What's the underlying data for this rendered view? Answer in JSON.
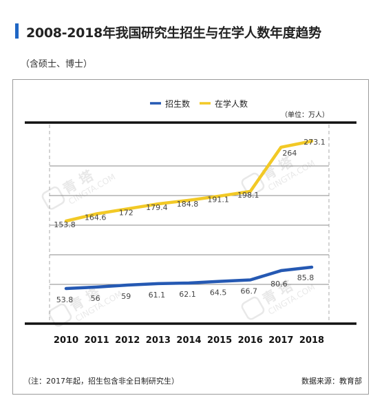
{
  "header": {
    "title": "2008-2018年我国研究生招生与在学人数年度趋势",
    "subtitle": "（含硕士、博士）"
  },
  "footer": {
    "note": "（注：2017年起，招生包含非全日制研究生）",
    "source": "数据来源：教育部"
  },
  "watermark": {
    "brand": "青 塔",
    "brand_en": "CINGTA.COM"
  },
  "colors": {
    "enrollment": "#2559b3",
    "in_school": "#f2c926",
    "rule": "#111111",
    "grid": "#888888"
  },
  "chart_data": {
    "type": "line",
    "unit_label": "（单位：万人）",
    "categories": [
      "2010",
      "2011",
      "2012",
      "2013",
      "2014",
      "2015",
      "2016",
      "2017",
      "2018"
    ],
    "series": [
      {
        "name": "招生数",
        "values": [
          53.8,
          56,
          59,
          61.1,
          62.1,
          64.5,
          66.7,
          80.6,
          85.8
        ],
        "labels": [
          "53.8",
          "56",
          "59",
          "61.1",
          "62.1",
          "64.5",
          "66.7",
          "80.6",
          "85.8"
        ]
      },
      {
        "name": "在学人数",
        "values": [
          153.8,
          164.6,
          172,
          179.4,
          184.8,
          191.1,
          198.1,
          264,
          273.1
        ],
        "labels": [
          "153.8",
          "164.6",
          "172",
          "179.4",
          "184.8",
          "191.1",
          "198.1",
          "264",
          "273.1"
        ]
      }
    ],
    "legend_position": "top-center",
    "grid": true
  }
}
